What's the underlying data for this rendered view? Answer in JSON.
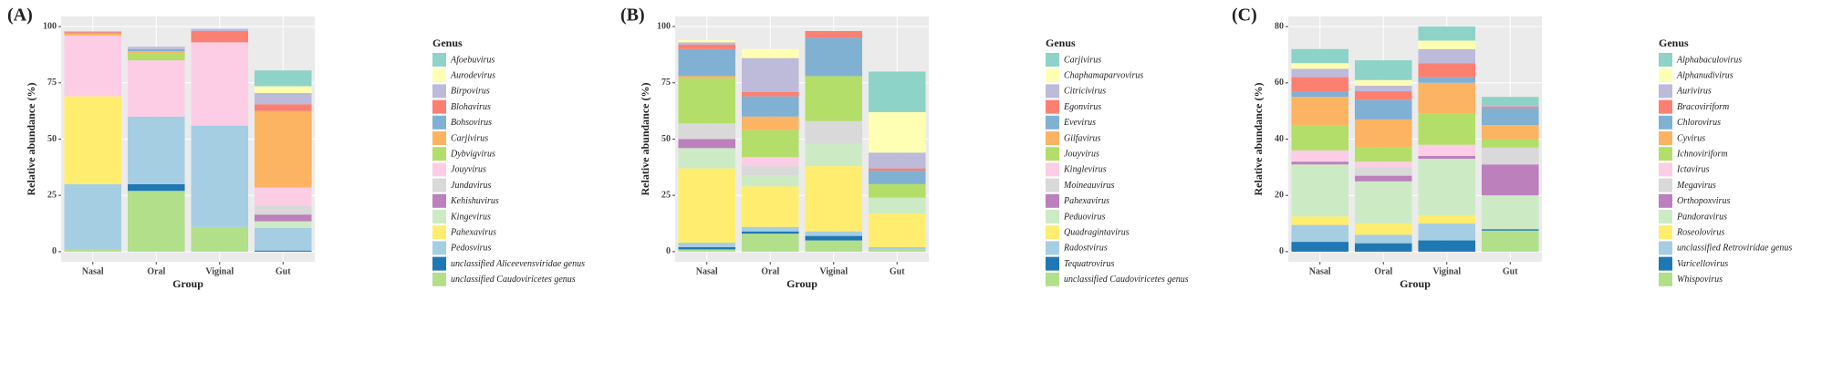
{
  "chart_data": [
    {
      "type": "stacked_bar",
      "label": "(A)",
      "y_label": "Relative abundance (%)",
      "x_label": "Group",
      "legend_title": "Genus",
      "categories": [
        "Nasal",
        "Oral",
        "Viginal",
        "Gut"
      ],
      "ylim": [
        -4.5,
        104.5
      ],
      "yticks": [
        0,
        25,
        50,
        75,
        100
      ],
      "grid": true,
      "series": [
        {
          "name": "Afoebuvirus",
          "color": "#8dd3c7",
          "values": [
            0,
            0,
            0,
            7
          ]
        },
        {
          "name": "Aurodevirus",
          "color": "#ffffb3",
          "values": [
            0,
            0,
            0,
            3
          ]
        },
        {
          "name": "Birpovirus",
          "color": "#bebada",
          "values": [
            0,
            1,
            1,
            5
          ]
        },
        {
          "name": "Blohavirus",
          "color": "#fb8072",
          "values": [
            0.5,
            0,
            5,
            3
          ]
        },
        {
          "name": "Bohsovirus",
          "color": "#80b1d3",
          "values": [
            0.3,
            1,
            0,
            0
          ]
        },
        {
          "name": "Carjivirus",
          "color": "#fdb462",
          "values": [
            1,
            1,
            0,
            34
          ]
        },
        {
          "name": "Dybvigvirus",
          "color": "#b3de69",
          "values": [
            0,
            3,
            0,
            0
          ]
        },
        {
          "name": "Jouyvirus",
          "color": "#fccde5",
          "values": [
            27,
            25,
            37,
            8
          ]
        },
        {
          "name": "Jundavirus",
          "color": "#d9d9d9",
          "values": [
            0,
            0,
            0,
            4
          ]
        },
        {
          "name": "Kehishuvirus",
          "color": "#bc80bd",
          "values": [
            0,
            0,
            0,
            3
          ]
        },
        {
          "name": "Kingevirus",
          "color": "#ccebc5",
          "values": [
            0,
            0,
            0,
            3
          ]
        },
        {
          "name": "Pahexavirus",
          "color": "#ffed6f",
          "values": [
            39,
            0,
            0,
            0
          ]
        },
        {
          "name": "Pedosvirus",
          "color": "#a6cee3",
          "values": [
            29,
            30,
            45,
            10
          ]
        },
        {
          "name": "unclassified Aliceevensviridae genus",
          "color": "#1f78b4",
          "values": [
            0,
            3,
            0,
            0.5
          ]
        },
        {
          "name": "unclassified Caudoviricetes genus",
          "color": "#b2df8a",
          "values": [
            1,
            27,
            11,
            0
          ]
        }
      ]
    },
    {
      "type": "stacked_bar",
      "label": "(B)",
      "y_label": "Relative abundance (%)",
      "x_label": "Group",
      "legend_title": "Genus",
      "categories": [
        "Nasal",
        "Oral",
        "Viginal",
        "Gut"
      ],
      "ylim": [
        -4.5,
        104.5
      ],
      "yticks": [
        0,
        25,
        50,
        75,
        100
      ],
      "grid": true,
      "series": [
        {
          "name": "Carjivirus",
          "color": "#8dd3c7",
          "values": [
            0,
            0,
            0,
            18
          ]
        },
        {
          "name": "Chaphamaparvovirus",
          "color": "#ffffb3",
          "values": [
            1,
            4,
            0,
            18
          ]
        },
        {
          "name": "Citricivirus",
          "color": "#bebada",
          "values": [
            1,
            15,
            0,
            7
          ]
        },
        {
          "name": "Egonvirus",
          "color": "#fb8072",
          "values": [
            2,
            2,
            3,
            1
          ]
        },
        {
          "name": "Evevirus",
          "color": "#80b1d3",
          "values": [
            12,
            9,
            17,
            6
          ]
        },
        {
          "name": "Gilfavirus",
          "color": "#fdb462",
          "values": [
            1,
            6,
            0,
            0
          ]
        },
        {
          "name": "Jouyvirus",
          "color": "#b3de69",
          "values": [
            20,
            12,
            20,
            6
          ]
        },
        {
          "name": "Kinglevirus",
          "color": "#fccde5",
          "values": [
            0,
            4,
            0,
            0
          ]
        },
        {
          "name": "Moineauvirus",
          "color": "#d9d9d9",
          "values": [
            7,
            4,
            10,
            0
          ]
        },
        {
          "name": "Pahexavirus",
          "color": "#bc80bd",
          "values": [
            4,
            0,
            0,
            0
          ]
        },
        {
          "name": "Peduovirus",
          "color": "#ccebc5",
          "values": [
            9,
            5,
            10,
            7
          ]
        },
        {
          "name": "Quadragintavirus",
          "color": "#ffed6f",
          "values": [
            33,
            18,
            29,
            15
          ]
        },
        {
          "name": "Radostvirus",
          "color": "#a6cee3",
          "values": [
            2,
            2,
            2,
            1
          ]
        },
        {
          "name": "Tequatrovirus",
          "color": "#1f78b4",
          "values": [
            1,
            1,
            2,
            0
          ]
        },
        {
          "name": "unclassified Caudoviricetes genus",
          "color": "#b2df8a",
          "values": [
            1,
            8,
            5,
            1
          ]
        }
      ]
    },
    {
      "type": "stacked_bar",
      "label": "(C)",
      "y_label": "Relative abundance (%)",
      "x_label": "Group",
      "legend_title": "Genus",
      "categories": [
        "Nasal",
        "Oral",
        "Viginal",
        "Gut"
      ],
      "ylim": [
        -3.6,
        83.6
      ],
      "yticks": [
        0,
        20,
        40,
        60,
        80
      ],
      "grid": true,
      "series": [
        {
          "name": "Alphabaculovirus",
          "color": "#8dd3c7",
          "values": [
            5,
            7,
            5,
            3
          ]
        },
        {
          "name": "Alphanudivirus",
          "color": "#ffffb3",
          "values": [
            2,
            2,
            3,
            0
          ]
        },
        {
          "name": "Aurivirus",
          "color": "#bebada",
          "values": [
            3,
            2,
            5,
            0.5
          ]
        },
        {
          "name": "Bracoviriform",
          "color": "#fb8072",
          "values": [
            5,
            3,
            5,
            0.5
          ]
        },
        {
          "name": "Chlorovirus",
          "color": "#80b1d3",
          "values": [
            2,
            7,
            2,
            6
          ]
        },
        {
          "name": "Cyvirus",
          "color": "#fdb462",
          "values": [
            10,
            10,
            11,
            5
          ]
        },
        {
          "name": "Ichnoviriform",
          "color": "#b3de69",
          "values": [
            9,
            5,
            11,
            3
          ]
        },
        {
          "name": "Ictavirus",
          "color": "#fccde5",
          "values": [
            4,
            2,
            4,
            0
          ]
        },
        {
          "name": "Megavirus",
          "color": "#d9d9d9",
          "values": [
            0,
            3,
            0,
            6
          ]
        },
        {
          "name": "Orthopoxvirus",
          "color": "#bc80bd",
          "values": [
            1,
            2,
            1,
            11
          ]
        },
        {
          "name": "Pandoravirus",
          "color": "#ccebc5",
          "values": [
            18.5,
            15,
            20,
            12
          ]
        },
        {
          "name": "Roseolovirus",
          "color": "#ffed6f",
          "values": [
            3,
            4,
            3,
            0
          ]
        },
        {
          "name": "unclassified Retroviridae genus",
          "color": "#a6cee3",
          "values": [
            6,
            3,
            6,
            0
          ]
        },
        {
          "name": "Varicellovirus",
          "color": "#1f78b4",
          "values": [
            3.5,
            3,
            4,
            0.5
          ]
        },
        {
          "name": "Whispovirus",
          "color": "#b2df8a",
          "values": [
            0,
            0,
            0,
            7.5
          ]
        }
      ]
    }
  ]
}
